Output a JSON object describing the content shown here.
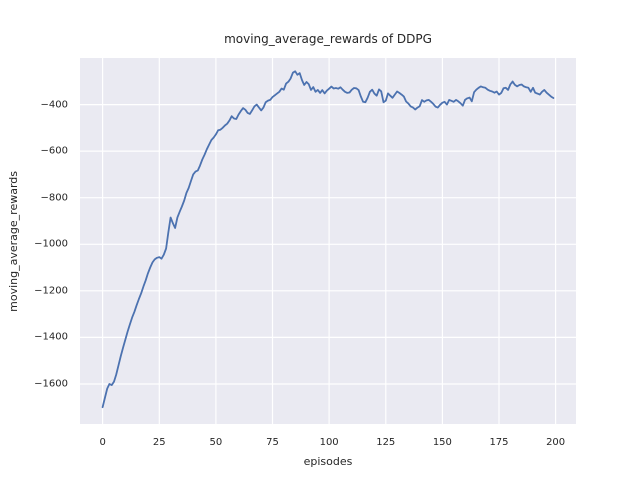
{
  "figure": {
    "background": "#ffffff"
  },
  "chart_data": {
    "type": "line",
    "title": "moving_average_rewards of DDPG",
    "xlabel": "episodes",
    "ylabel": "moving_average_rewards",
    "xlim": [
      -10,
      209
    ],
    "ylim": [
      -1772,
      -200
    ],
    "xticks": [
      0,
      25,
      50,
      75,
      100,
      125,
      150,
      175,
      200
    ],
    "yticks": [
      -400,
      -600,
      -800,
      -1000,
      -1200,
      -1400,
      -1600
    ],
    "grid": true,
    "legend": "none",
    "plot_bg_color": "#eaeaf2",
    "grid_color": "#ffffff",
    "line_color": "#4c72b0",
    "text_color": "#262626",
    "x_start": 0,
    "x_step": 1,
    "series": [
      {
        "name": "moving_average_rewards",
        "values": [
          -1700,
          -1660,
          -1620,
          -1600,
          -1605,
          -1590,
          -1560,
          -1520,
          -1480,
          -1445,
          -1410,
          -1375,
          -1345,
          -1315,
          -1290,
          -1262,
          -1235,
          -1210,
          -1182,
          -1155,
          -1125,
          -1100,
          -1078,
          -1065,
          -1058,
          -1055,
          -1062,
          -1045,
          -1018,
          -950,
          -885,
          -910,
          -930,
          -885,
          -860,
          -838,
          -812,
          -780,
          -758,
          -728,
          -700,
          -688,
          -683,
          -662,
          -636,
          -615,
          -592,
          -572,
          -552,
          -542,
          -528,
          -510,
          -508,
          -500,
          -490,
          -482,
          -468,
          -450,
          -460,
          -462,
          -443,
          -428,
          -415,
          -422,
          -436,
          -440,
          -425,
          -408,
          -400,
          -412,
          -425,
          -412,
          -390,
          -383,
          -380,
          -368,
          -360,
          -353,
          -345,
          -331,
          -336,
          -310,
          -302,
          -288,
          -263,
          -257,
          -272,
          -265,
          -295,
          -316,
          -303,
          -312,
          -337,
          -325,
          -345,
          -337,
          -350,
          -338,
          -352,
          -340,
          -332,
          -323,
          -331,
          -329,
          -332,
          -326,
          -336,
          -345,
          -350,
          -348,
          -336,
          -329,
          -330,
          -338,
          -365,
          -388,
          -390,
          -371,
          -345,
          -336,
          -353,
          -362,
          -335,
          -343,
          -390,
          -383,
          -352,
          -362,
          -371,
          -357,
          -344,
          -350,
          -357,
          -366,
          -387,
          -396,
          -408,
          -412,
          -421,
          -413,
          -407,
          -381,
          -388,
          -382,
          -380,
          -388,
          -397,
          -409,
          -413,
          -401,
          -392,
          -388,
          -400,
          -380,
          -384,
          -388,
          -380,
          -386,
          -394,
          -405,
          -380,
          -373,
          -370,
          -386,
          -347,
          -336,
          -328,
          -322,
          -326,
          -328,
          -336,
          -341,
          -344,
          -349,
          -344,
          -357,
          -350,
          -330,
          -328,
          -337,
          -314,
          -301,
          -315,
          -322,
          -316,
          -314,
          -322,
          -326,
          -328,
          -345,
          -328,
          -349,
          -353,
          -357,
          -345,
          -337,
          -349,
          -357,
          -366,
          -372
        ]
      }
    ]
  }
}
